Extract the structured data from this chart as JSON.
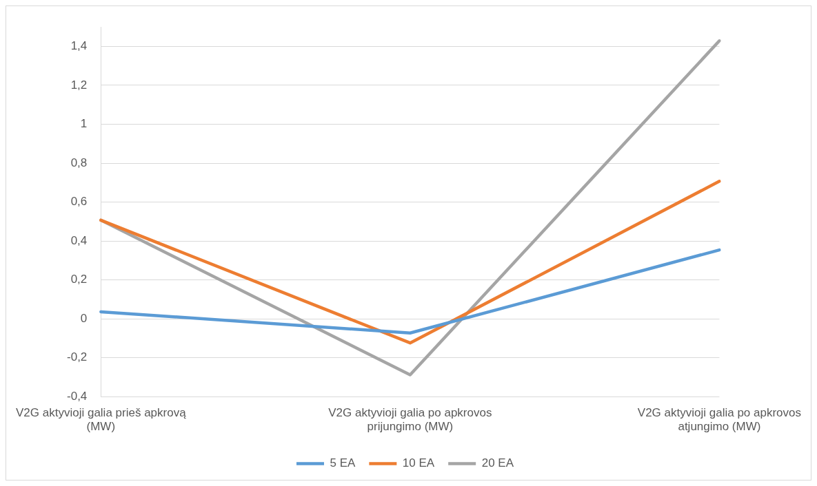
{
  "chart_data": {
    "type": "line",
    "categories": [
      "V2G aktyvioji galia prieš apkrovą (MW)",
      "V2G aktyvioji galia po apkrovos prijungimo (MW)",
      "V2G aktyvioji galia po apkrovos atjungimo (MW)"
    ],
    "series": [
      {
        "name": "5 EA",
        "color": "#5b9bd5",
        "values": [
          0.036,
          -0.073,
          0.354
        ]
      },
      {
        "name": "10 EA",
        "color": "#ed7d31",
        "values": [
          0.507,
          -0.124,
          0.707
        ]
      },
      {
        "name": "20 EA",
        "color": "#a5a5a5",
        "values": [
          0.507,
          -0.288,
          1.429
        ]
      }
    ],
    "ylim": [
      -0.4,
      1.5
    ],
    "yticks": [
      {
        "value": -0.4,
        "label": "-0,4"
      },
      {
        "value": -0.2,
        "label": "-0,2"
      },
      0,
      {
        "value": 0.2,
        "label": "0,2"
      },
      {
        "value": 0.4,
        "label": "0,4"
      },
      {
        "value": 0.6,
        "label": "0,6"
      },
      {
        "value": 0.8,
        "label": "0,8"
      },
      1,
      {
        "value": 1.2,
        "label": "1,2"
      },
      {
        "value": 1.4,
        "label": "1,4"
      }
    ],
    "grid": "y",
    "legend": "bottom",
    "marker": "none",
    "line_style": "solid"
  }
}
